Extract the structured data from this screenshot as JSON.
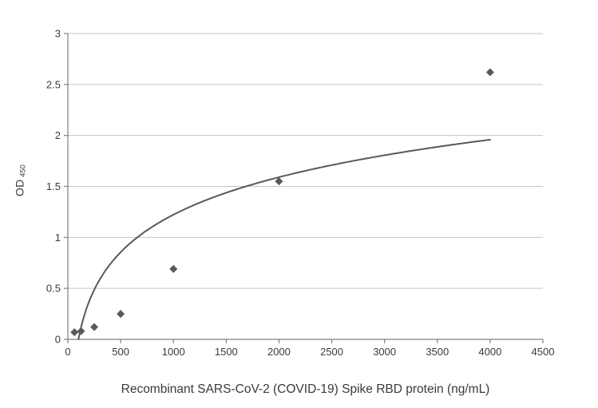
{
  "chart_data": {
    "type": "scatter",
    "title": "",
    "xlabel": "Recombinant SARS-CoV-2 (COVID-19) Spike RBD protein (ng/mL)",
    "ylabel_main": "OD",
    "ylabel_sub": "450",
    "xlim": [
      0,
      4500
    ],
    "ylim": [
      0,
      3
    ],
    "xticks": [
      0,
      500,
      1000,
      1500,
      2000,
      2500,
      3000,
      3500,
      4000,
      4500
    ],
    "yticks": [
      0,
      0.5,
      1,
      1.5,
      2,
      2.5,
      3
    ],
    "grid": "horizontal",
    "legend": "none",
    "points": [
      {
        "x": 62.5,
        "y": 0.07
      },
      {
        "x": 125,
        "y": 0.08
      },
      {
        "x": 250,
        "y": 0.12
      },
      {
        "x": 500,
        "y": 0.25
      },
      {
        "x": 1000,
        "y": 0.69
      },
      {
        "x": 2000,
        "y": 1.55
      },
      {
        "x": 4000,
        "y": 2.62
      }
    ],
    "trend": {
      "type": "log",
      "a": 0.531,
      "x0": 100,
      "x_start": 100,
      "x_end": 4000
    },
    "colors": {
      "marker": "#595959",
      "line": "#595959",
      "grid": "#c6c6c6",
      "axis": "#808080",
      "text": "#3a3a3a",
      "background": "#ffffff"
    }
  }
}
